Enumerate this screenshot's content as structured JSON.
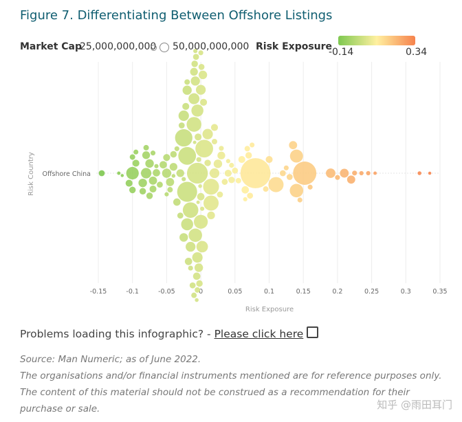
{
  "title": "Figure 7. Differentiating Between Offshore Listings",
  "legend": {
    "market_cap_label": "Market Cap",
    "cap_small": "25,000,000,000",
    "cap_large": "50,000,000,000",
    "risk_label": "Risk Exposure",
    "risk_min": "-0.14",
    "risk_max": "0.34"
  },
  "colors": {
    "low": "#7ec850",
    "mid": "#fff0a0",
    "high": "#f6824c",
    "title": "#0f5d70"
  },
  "chart_data": {
    "type": "scatter",
    "subtype": "beeswarm",
    "xlabel": "Risk Exposure",
    "ylabel": "Risk Country",
    "category": "Offshore China",
    "xlim": [
      -0.15,
      0.35
    ],
    "x_ticks": [
      "-0.15",
      "-0.1",
      "-0.05",
      "0",
      "0.05",
      "0.1",
      "0.15",
      "0.2",
      "0.25",
      "0.3",
      "0.35"
    ],
    "x_tick_values": [
      -0.15,
      -0.1,
      -0.05,
      0,
      0.05,
      0.1,
      0.15,
      0.2,
      0.25,
      0.3,
      0.35
    ],
    "size_unit": "market cap (billions)",
    "points": [
      [
        -0.145,
        30
      ],
      [
        -0.12,
        10
      ],
      [
        -0.115,
        8
      ],
      [
        -0.1,
        130
      ],
      [
        -0.105,
        40
      ],
      [
        -0.095,
        40
      ],
      [
        -0.1,
        35
      ],
      [
        -0.1,
        25
      ],
      [
        -0.095,
        20
      ],
      [
        -0.08,
        90
      ],
      [
        -0.085,
        60
      ],
      [
        -0.075,
        60
      ],
      [
        -0.07,
        55
      ],
      [
        -0.08,
        50
      ],
      [
        -0.065,
        45
      ],
      [
        -0.07,
        40
      ],
      [
        -0.085,
        35
      ],
      [
        -0.075,
        35
      ],
      [
        -0.06,
        30
      ],
      [
        -0.08,
        25
      ],
      [
        -0.07,
        20
      ],
      [
        -0.065,
        15
      ],
      [
        -0.05,
        70
      ],
      [
        -0.045,
        55
      ],
      [
        -0.04,
        50
      ],
      [
        -0.055,
        45
      ],
      [
        -0.035,
        45
      ],
      [
        -0.05,
        40
      ],
      [
        -0.04,
        35
      ],
      [
        -0.03,
        30
      ],
      [
        -0.045,
        25
      ],
      [
        -0.035,
        20
      ],
      [
        -0.05,
        15
      ],
      [
        -0.04,
        12
      ],
      [
        -0.02,
        330
      ],
      [
        -0.02,
        260
      ],
      [
        -0.025,
        250
      ],
      [
        -0.015,
        200
      ],
      [
        -0.02,
        120
      ],
      [
        -0.025,
        90
      ],
      [
        -0.015,
        80
      ],
      [
        -0.02,
        70
      ],
      [
        -0.025,
        60
      ],
      [
        -0.03,
        50
      ],
      [
        -0.018,
        45
      ],
      [
        -0.022,
        40
      ],
      [
        -0.028,
        30
      ],
      [
        -0.012,
        30
      ],
      [
        -0.02,
        25
      ],
      [
        -0.015,
        20
      ],
      [
        -0.025,
        15
      ],
      [
        -0.005,
        360
      ],
      [
        -0.01,
        180
      ],
      [
        0,
        160
      ],
      [
        -0.008,
        150
      ],
      [
        -0.005,
        120
      ],
      [
        0.005,
        260
      ],
      [
        0.002,
        110
      ],
      [
        -0.01,
        100
      ],
      [
        -0.005,
        90
      ],
      [
        0,
        80
      ],
      [
        -0.008,
        70
      ],
      [
        -0.003,
        60
      ],
      [
        0.003,
        60
      ],
      [
        -0.01,
        50
      ],
      [
        -0.006,
        45
      ],
      [
        0,
        45
      ],
      [
        -0.004,
        40
      ],
      [
        0.004,
        40
      ],
      [
        -0.009,
        35
      ],
      [
        -0.002,
        35
      ],
      [
        -0.007,
        30
      ],
      [
        0.001,
        30
      ],
      [
        -0.005,
        25
      ],
      [
        -0.01,
        25
      ],
      [
        0,
        20
      ],
      [
        -0.003,
        20
      ],
      [
        -0.008,
        15
      ],
      [
        0.002,
        15
      ],
      [
        -0.006,
        12
      ],
      [
        -0.001,
        12
      ],
      [
        -0.004,
        10
      ],
      [
        -0.009,
        10
      ],
      [
        0.015,
        210
      ],
      [
        0.015,
        190
      ],
      [
        0.01,
        90
      ],
      [
        0.02,
        80
      ],
      [
        0.025,
        60
      ],
      [
        0.03,
        50
      ],
      [
        0.015,
        50
      ],
      [
        0.02,
        40
      ],
      [
        0.01,
        35
      ],
      [
        0.028,
        30
      ],
      [
        0.02,
        25
      ],
      [
        0.03,
        20
      ],
      [
        0.04,
        40
      ],
      [
        0.045,
        35
      ],
      [
        0.05,
        30
      ],
      [
        0.035,
        30
      ],
      [
        0.055,
        25
      ],
      [
        0.045,
        20
      ],
      [
        0.04,
        15
      ],
      [
        0.06,
        40
      ],
      [
        0.065,
        45
      ],
      [
        0.07,
        35
      ],
      [
        0.072,
        30
      ],
      [
        0.068,
        25
      ],
      [
        0.075,
        20
      ],
      [
        0.065,
        15
      ],
      [
        0.08,
        750
      ],
      [
        0.1,
        40
      ],
      [
        0.095,
        25
      ],
      [
        0.11,
        190
      ],
      [
        0.12,
        30
      ],
      [
        0.125,
        20
      ],
      [
        0.14,
        150
      ],
      [
        0.14,
        140
      ],
      [
        0.135,
        55
      ],
      [
        0.13,
        30
      ],
      [
        0.152,
        450
      ],
      [
        0.16,
        20
      ],
      [
        0.145,
        20
      ],
      [
        0.19,
        75
      ],
      [
        0.21,
        65
      ],
      [
        0.22,
        55
      ],
      [
        0.2,
        20
      ],
      [
        0.225,
        20
      ],
      [
        0.235,
        15
      ],
      [
        0.245,
        15
      ],
      [
        0.255,
        10
      ],
      [
        0.32,
        12
      ],
      [
        0.335,
        8
      ]
    ]
  },
  "footer": {
    "problems_text": "Problems loading this infographic? - ",
    "link_text": "Please click here",
    "source_lines": [
      "Source: Man Numeric; as of June 2022.",
      "The organisations and/or financial instruments mentioned are for reference purposes only.",
      "The content of this material should not be construed as a recommendation for their",
      "purchase or sale."
    ]
  },
  "watermark": "知乎 @雨田耳门"
}
